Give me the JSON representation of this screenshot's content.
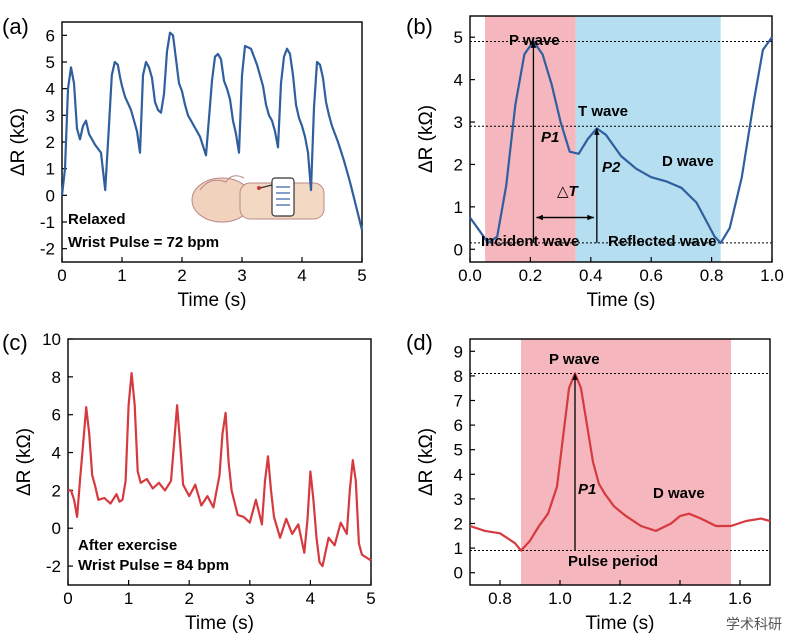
{
  "figure": {
    "watermark": "学术科研"
  },
  "chart_data": [
    {
      "id": "a",
      "panel_label": "(a)",
      "type": "line",
      "xlabel": "Time (s)",
      "ylabel": "ΔR (kΩ)",
      "xlim": [
        0,
        5
      ],
      "ylim": [
        -2.5,
        6.5
      ],
      "xticks": [
        0,
        1,
        2,
        3,
        4,
        5
      ],
      "xtick_labels": [
        "0",
        "1",
        "2",
        "3",
        "4",
        "5"
      ],
      "yticks": [
        -2,
        -1,
        0,
        1,
        2,
        3,
        4,
        5,
        6
      ],
      "ytick_labels": [
        "-2",
        "-1",
        "0",
        "1",
        "2",
        "3",
        "4",
        "5",
        "6"
      ],
      "series": [
        {
          "color": "#2f5f9e",
          "x": [
            0,
            0.05,
            0.1,
            0.15,
            0.2,
            0.25,
            0.3,
            0.35,
            0.4,
            0.45,
            0.55,
            0.65,
            0.72,
            0.78,
            0.83,
            0.88,
            0.93,
            0.97,
            1.0,
            1.05,
            1.15,
            1.25,
            1.3,
            1.35,
            1.4,
            1.45,
            1.5,
            1.55,
            1.6,
            1.65,
            1.7,
            1.75,
            1.8,
            1.85,
            1.9,
            1.95,
            2.0,
            2.05,
            2.1,
            2.2,
            2.3,
            2.4,
            2.5,
            2.55,
            2.6,
            2.65,
            2.7,
            2.75,
            2.8,
            2.85,
            2.9,
            2.95,
            3.0,
            3.05,
            3.15,
            3.25,
            3.35,
            3.4,
            3.45,
            3.5,
            3.55,
            3.6,
            3.65,
            3.7,
            3.75,
            3.8,
            3.85,
            3.9,
            3.95,
            4.0,
            4.05,
            4.1,
            4.15,
            4.2,
            4.25,
            4.3,
            4.35,
            4.4,
            4.45,
            4.5,
            4.55,
            4.6,
            4.7,
            4.8,
            4.9,
            5.0
          ],
          "y": [
            0,
            1.0,
            4.0,
            4.8,
            4.2,
            2.5,
            2.1,
            2.6,
            2.8,
            2.3,
            1.9,
            1.6,
            0.2,
            2.5,
            4.5,
            5.0,
            4.9,
            4.4,
            4.1,
            3.7,
            3.2,
            2.4,
            1.6,
            4.5,
            5.0,
            4.8,
            4.4,
            3.5,
            3.2,
            3.1,
            3.8,
            5.4,
            6.1,
            6.0,
            5.1,
            4.2,
            3.9,
            3.4,
            3.0,
            2.6,
            2.2,
            1.5,
            4.3,
            5.2,
            5.3,
            5.1,
            4.3,
            4.0,
            3.6,
            2.8,
            2.3,
            1.6,
            4.5,
            5.6,
            5.5,
            4.9,
            4.1,
            3.4,
            3.0,
            2.8,
            2.4,
            1.8,
            4.2,
            5.2,
            5.5,
            5.3,
            4.5,
            3.4,
            2.9,
            2.6,
            2.2,
            1.6,
            0.2,
            3.3,
            5.0,
            4.9,
            4.4,
            3.5,
            3.0,
            2.6,
            2.3,
            2.0,
            1.3,
            0.5,
            -0.4,
            -1.3
          ]
        }
      ],
      "annotations": {
        "state": "Relaxed",
        "pulse": "Wrist Pulse = 72 bpm"
      }
    },
    {
      "id": "b",
      "panel_label": "(b)",
      "type": "line",
      "xlabel": "Time (s)",
      "ylabel": "ΔR (kΩ)",
      "xlim": [
        0,
        1.0
      ],
      "ylim": [
        -0.3,
        5.5
      ],
      "xticks": [
        0,
        0.2,
        0.4,
        0.6,
        0.8,
        1.0
      ],
      "xtick_labels": [
        "0.0",
        "0.2",
        "0.4",
        "0.6",
        "0.8",
        "1.0"
      ],
      "yticks": [
        0,
        1,
        2,
        3,
        4,
        5
      ],
      "ytick_labels": [
        "0",
        "1",
        "2",
        "3",
        "4",
        "5"
      ],
      "shaded_regions": [
        {
          "x": [
            0.05,
            0.35
          ],
          "color": "#f3a9b1",
          "label": "Incident wave"
        },
        {
          "x": [
            0.35,
            0.83
          ],
          "color": "#a9d8ef",
          "label": "Reflected wave"
        }
      ],
      "series": [
        {
          "color": "#2f5f9e",
          "x": [
            0,
            0.03,
            0.06,
            0.09,
            0.12,
            0.15,
            0.18,
            0.21,
            0.24,
            0.27,
            0.3,
            0.33,
            0.36,
            0.39,
            0.42,
            0.45,
            0.5,
            0.55,
            0.6,
            0.65,
            0.7,
            0.75,
            0.78,
            0.81,
            0.83,
            0.86,
            0.9,
            0.94,
            0.97,
            1.0
          ],
          "y": [
            0.75,
            0.45,
            0.15,
            0.3,
            1.5,
            3.4,
            4.6,
            4.9,
            4.6,
            3.9,
            3.0,
            2.3,
            2.25,
            2.6,
            2.85,
            2.7,
            2.2,
            1.9,
            1.7,
            1.6,
            1.45,
            1.1,
            0.7,
            0.3,
            0.15,
            0.5,
            1.7,
            3.5,
            4.7,
            5.0
          ]
        }
      ],
      "guides_y": [
        4.9,
        2.9,
        0.15
      ],
      "annotations": {
        "p_wave": "P wave",
        "t_wave": "T wave",
        "d_wave": "D wave",
        "p1": "P1",
        "p2": "P2",
        "delta_t": "△T",
        "incident": "Incident wave",
        "reflected": "Reflected wave"
      }
    },
    {
      "id": "c",
      "panel_label": "(c)",
      "type": "line",
      "xlabel": "Time (s)",
      "ylabel": "ΔR (kΩ)",
      "xlim": [
        0,
        5
      ],
      "ylim": [
        -3,
        10
      ],
      "xticks": [
        0,
        1,
        2,
        3,
        4,
        5
      ],
      "xtick_labels": [
        "0",
        "1",
        "2",
        "3",
        "4",
        "5"
      ],
      "yticks": [
        -2,
        0,
        2,
        4,
        6,
        8,
        10
      ],
      "ytick_labels": [
        "-2",
        "0",
        "2",
        "4",
        "6",
        "8",
        "10"
      ],
      "series": [
        {
          "color": "#d63a3f",
          "x": [
            0,
            0.05,
            0.1,
            0.15,
            0.2,
            0.25,
            0.3,
            0.35,
            0.4,
            0.45,
            0.5,
            0.6,
            0.7,
            0.8,
            0.85,
            0.9,
            0.95,
            1.0,
            1.05,
            1.1,
            1.15,
            1.2,
            1.3,
            1.4,
            1.5,
            1.6,
            1.7,
            1.75,
            1.8,
            1.85,
            1.9,
            2.0,
            2.1,
            2.2,
            2.3,
            2.4,
            2.5,
            2.55,
            2.6,
            2.65,
            2.7,
            2.8,
            2.9,
            3.0,
            3.1,
            3.2,
            3.25,
            3.3,
            3.35,
            3.4,
            3.5,
            3.6,
            3.7,
            3.8,
            3.9,
            3.95,
            4.0,
            4.05,
            4.1,
            4.15,
            4.2,
            4.3,
            4.4,
            4.5,
            4.6,
            4.65,
            4.7,
            4.75,
            4.8,
            4.85,
            4.9,
            5.0
          ],
          "y": [
            2.0,
            2.0,
            1.5,
            0.6,
            2.6,
            4.5,
            6.4,
            5.0,
            2.8,
            2.2,
            1.5,
            1.6,
            1.3,
            1.8,
            1.4,
            1.5,
            2.5,
            6.5,
            8.2,
            6.5,
            3.0,
            2.4,
            2.6,
            2.1,
            2.4,
            2.0,
            2.5,
            4.5,
            6.5,
            4.5,
            2.3,
            1.7,
            2.3,
            1.2,
            1.7,
            1.1,
            2.8,
            5.0,
            6.1,
            3.5,
            2.0,
            0.7,
            0.6,
            0.3,
            1.5,
            0.2,
            2.5,
            3.8,
            2.0,
            0.6,
            -0.5,
            0.5,
            -0.3,
            0.2,
            -1.3,
            0.4,
            3.0,
            1.5,
            -0.5,
            -1.8,
            -2.0,
            -0.5,
            -0.9,
            0.3,
            -0.3,
            2.0,
            3.6,
            2.5,
            -0.8,
            -1.4,
            -1.5,
            -1.7
          ]
        }
      ],
      "annotations": {
        "state": "After exercise",
        "pulse": "Wrist Pulse = 84 bpm"
      }
    },
    {
      "id": "d",
      "panel_label": "(d)",
      "type": "line",
      "xlabel": "Time (s)",
      "ylabel": "ΔR (kΩ)",
      "xlim": [
        0.7,
        1.7
      ],
      "ylim": [
        -0.5,
        9.5
      ],
      "xticks": [
        0.8,
        1.0,
        1.2,
        1.4,
        1.6
      ],
      "xtick_labels": [
        "0.8",
        "1.0",
        "1.2",
        "1.4",
        "1.6"
      ],
      "yticks": [
        0,
        1,
        2,
        3,
        4,
        5,
        6,
        7,
        8,
        9
      ],
      "ytick_labels": [
        "0",
        "1",
        "2",
        "3",
        "4",
        "5",
        "6",
        "7",
        "8",
        "9"
      ],
      "shaded_regions": [
        {
          "x": [
            0.87,
            1.57
          ],
          "color": "#f3a9b1",
          "label": "Pulse period"
        }
      ],
      "series": [
        {
          "color": "#d63a3f",
          "x": [
            0.7,
            0.75,
            0.8,
            0.85,
            0.87,
            0.9,
            0.93,
            0.96,
            0.99,
            1.01,
            1.03,
            1.05,
            1.07,
            1.09,
            1.11,
            1.13,
            1.15,
            1.18,
            1.22,
            1.27,
            1.32,
            1.37,
            1.4,
            1.43,
            1.47,
            1.52,
            1.57,
            1.62,
            1.67,
            1.7
          ],
          "y": [
            1.9,
            1.7,
            1.6,
            1.2,
            0.9,
            1.3,
            1.9,
            2.4,
            3.5,
            5.5,
            7.5,
            8.1,
            7.5,
            6.0,
            4.5,
            3.6,
            3.2,
            2.7,
            2.3,
            1.9,
            1.7,
            2.0,
            2.3,
            2.4,
            2.2,
            1.9,
            1.9,
            2.1,
            2.2,
            2.1
          ]
        }
      ],
      "guides_y": [
        8.1,
        0.9
      ],
      "annotations": {
        "p_wave": "P wave",
        "d_wave": "D wave",
        "p1": "P1",
        "period": "Pulse period"
      }
    }
  ]
}
